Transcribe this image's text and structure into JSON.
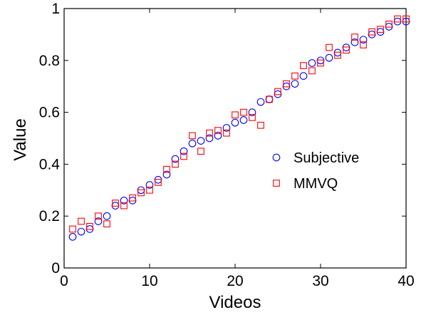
{
  "chart_data": {
    "type": "scatter",
    "title": "",
    "xlabel": "Videos",
    "ylabel": "Value",
    "xlim": [
      0,
      40
    ],
    "ylim": [
      0,
      1
    ],
    "xticks": [
      0,
      10,
      20,
      30,
      40
    ],
    "xtick_labels": [
      "0",
      "10",
      "20",
      "30",
      "40"
    ],
    "yticks": [
      0,
      0.2,
      0.4,
      0.6,
      0.8,
      1
    ],
    "ytick_labels": [
      "0",
      "0.2",
      "0.4",
      "0.6",
      "0.8",
      "1"
    ],
    "grid": false,
    "legend": "center-right",
    "series": [
      {
        "name": "Subjective",
        "marker": "circle",
        "color": "#0000ff",
        "x": [
          1,
          2,
          3,
          4,
          5,
          6,
          7,
          8,
          9,
          10,
          11,
          12,
          13,
          14,
          15,
          16,
          17,
          18,
          19,
          20,
          21,
          22,
          23,
          24,
          25,
          26,
          27,
          28,
          29,
          30,
          31,
          32,
          33,
          34,
          35,
          36,
          37,
          38,
          39,
          40
        ],
        "values": [
          0.12,
          0.14,
          0.15,
          0.18,
          0.2,
          0.24,
          0.26,
          0.26,
          0.3,
          0.32,
          0.34,
          0.36,
          0.42,
          0.45,
          0.48,
          0.49,
          0.5,
          0.51,
          0.54,
          0.56,
          0.57,
          0.6,
          0.64,
          0.65,
          0.67,
          0.7,
          0.71,
          0.74,
          0.79,
          0.8,
          0.81,
          0.83,
          0.85,
          0.87,
          0.88,
          0.9,
          0.91,
          0.93,
          0.95,
          0.95
        ]
      },
      {
        "name": "MMVQ",
        "marker": "square",
        "color": "#ff0000",
        "x": [
          1,
          2,
          3,
          4,
          5,
          6,
          7,
          8,
          9,
          10,
          11,
          12,
          13,
          14,
          15,
          16,
          17,
          18,
          19,
          20,
          21,
          22,
          23,
          24,
          25,
          26,
          27,
          28,
          29,
          30,
          31,
          32,
          33,
          34,
          35,
          36,
          37,
          38,
          39,
          40
        ],
        "values": [
          0.15,
          0.18,
          0.16,
          0.2,
          0.17,
          0.25,
          0.24,
          0.27,
          0.29,
          0.3,
          0.33,
          0.38,
          0.4,
          0.43,
          0.51,
          0.45,
          0.52,
          0.53,
          0.52,
          0.59,
          0.6,
          0.58,
          0.55,
          0.65,
          0.68,
          0.71,
          0.74,
          0.78,
          0.76,
          0.79,
          0.85,
          0.82,
          0.84,
          0.89,
          0.86,
          0.91,
          0.92,
          0.94,
          0.96,
          0.96
        ]
      }
    ]
  }
}
